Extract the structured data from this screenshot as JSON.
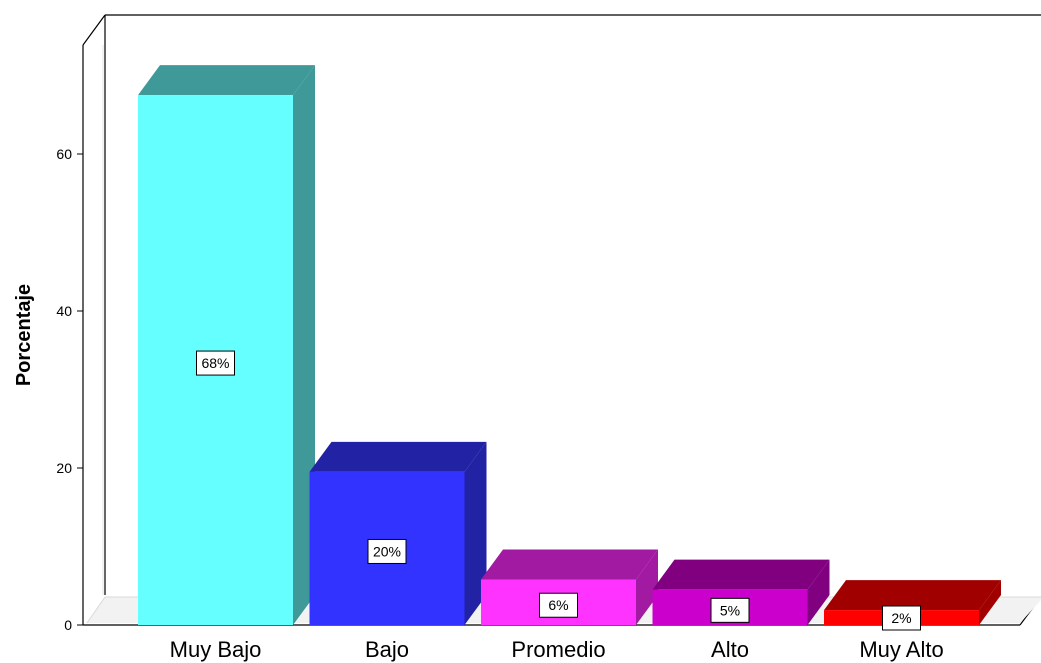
{
  "chart_data": {
    "type": "bar",
    "style": "3d",
    "categories": [
      "Muy Bajo",
      "Bajo",
      "Promedio",
      "Alto",
      "Muy Alto"
    ],
    "values": [
      67.5,
      19.5,
      5.8,
      4.5,
      1.9
    ],
    "data_labels": [
      "68%",
      "20%",
      "6%",
      "5%",
      "2%"
    ],
    "colors": [
      {
        "front": "#66ffff",
        "top": "#409999",
        "side": "#409999"
      },
      {
        "front": "#3333ff",
        "top": "#2222a4",
        "side": "#2222a4"
      },
      {
        "front": "#ff33ff",
        "top": "#a21aa2",
        "side": "#a21aa2"
      },
      {
        "front": "#cc00cc",
        "top": "#800080",
        "side": "#800080"
      },
      {
        "front": "#ff0000",
        "top": "#a10000",
        "side": "#a10000"
      }
    ],
    "ylabel": "Porcentaje",
    "xlabel": "",
    "title": "",
    "ylim": [
      0,
      72
    ],
    "yticks": [
      0,
      20,
      40,
      60
    ],
    "grid": false,
    "legend": "none"
  }
}
